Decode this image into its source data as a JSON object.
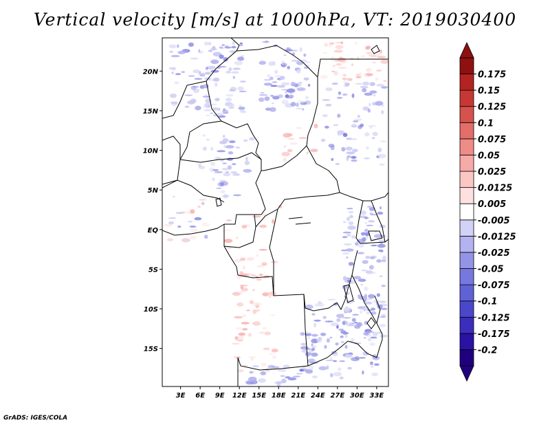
{
  "title": "Vertical velocity [m/s] at 1000hPa, VT: 2019030400",
  "credit": "GrADS: IGES/COLA",
  "map": {
    "lat_labels": [
      "20N",
      "15N",
      "10N",
      "5N",
      "EQ",
      "5S",
      "10S",
      "15S"
    ],
    "lon_labels": [
      "3E",
      "6E",
      "9E",
      "12E",
      "15E",
      "18E",
      "21E",
      "24E",
      "27E",
      "30E",
      "33E"
    ],
    "lat_range": [
      -19.8,
      24.2
    ],
    "lon_range": [
      0.2,
      34.8
    ]
  },
  "colorbar": {
    "colors": [
      "#21007f",
      "#2a12a5",
      "#3b2ebd",
      "#4b47cb",
      "#5f62d6",
      "#7778df",
      "#9494e7",
      "#b4b2ef",
      "#d2d2f6",
      "#ffffff",
      "#fde0df",
      "#fbc7c5",
      "#f6aaa7",
      "#ee8c88",
      "#e36e69",
      "#d6524d",
      "#c73835",
      "#b22322",
      "#8e1010"
    ],
    "labels": [
      "-0.2",
      "-0.175",
      "-0.125",
      "-0.1",
      "-0.075",
      "-0.05",
      "-0.025",
      "-0.0125",
      "-0.005",
      "0.005",
      "0.0125",
      "0.025",
      "0.05",
      "0.075",
      "0.1",
      "0.125",
      "0.15",
      "0.175"
    ]
  }
}
